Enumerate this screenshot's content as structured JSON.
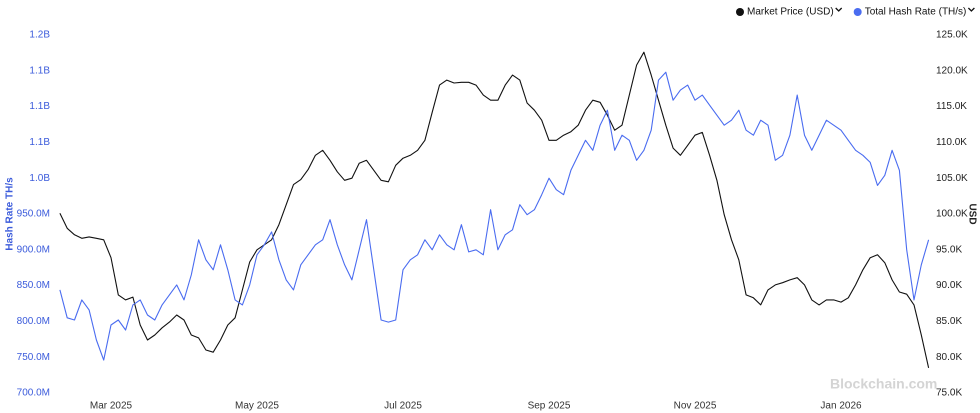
{
  "chart_data": {
    "type": "line",
    "y_label": "Hash Rate TH/s",
    "y2_label": "USD",
    "watermark": "Blockchain.com",
    "legend": "top-right",
    "categories": [
      null,
      null,
      null,
      null,
      null,
      null,
      null,
      "Mar 2025",
      null,
      null,
      null,
      null,
      null,
      null,
      null,
      null,
      null,
      null,
      null,
      null,
      null,
      null,
      null,
      null,
      null,
      null,
      null,
      "May 2025",
      null,
      null,
      null,
      null,
      null,
      null,
      null,
      null,
      null,
      null,
      null,
      null,
      null,
      null,
      null,
      null,
      null,
      null,
      null,
      "Jul 2025",
      null,
      null,
      null,
      null,
      null,
      null,
      null,
      null,
      null,
      null,
      null,
      null,
      null,
      null,
      null,
      null,
      null,
      null,
      null,
      "Sep 2025",
      null,
      null,
      null,
      null,
      null,
      null,
      null,
      null,
      null,
      null,
      null,
      null,
      null,
      null,
      null,
      null,
      null,
      null,
      null,
      "Nov 2025",
      null,
      null,
      null,
      null,
      null,
      null,
      null,
      null,
      null,
      null,
      null,
      null,
      null,
      null,
      null,
      null,
      null,
      null,
      null,
      "Jan 2026",
      null,
      null,
      null,
      null,
      null,
      null,
      null,
      null,
      null,
      null,
      null,
      null
    ],
    "ylim": [
      700000000,
      1200000000
    ],
    "yticks": [
      {
        "value": 700000000,
        "label": "700.0M"
      },
      {
        "value": 750000000,
        "label": "750.0M"
      },
      {
        "value": 800000000,
        "label": "800.0M"
      },
      {
        "value": 850000000,
        "label": "850.0M"
      },
      {
        "value": 900000000,
        "label": "900.0M"
      },
      {
        "value": 950000000,
        "label": "950.0M"
      },
      {
        "value": 1000000000,
        "label": "1.0B"
      },
      {
        "value": 1050000000,
        "label": "1.1B"
      },
      {
        "value": 1100000000,
        "label": "1.1B"
      },
      {
        "value": 1150000000,
        "label": "1.1B"
      },
      {
        "value": 1200000000,
        "label": "1.2B"
      }
    ],
    "y2lim": [
      75000,
      125000
    ],
    "y2ticks": [
      {
        "value": 75000,
        "label": "75.0K"
      },
      {
        "value": 80000,
        "label": "80.0K"
      },
      {
        "value": 85000,
        "label": "85.0K"
      },
      {
        "value": 90000,
        "label": "90.0K"
      },
      {
        "value": 95000,
        "label": "95.0K"
      },
      {
        "value": 100000,
        "label": "100.0K"
      },
      {
        "value": 105000,
        "label": "105.0K"
      },
      {
        "value": 110000,
        "label": "110.0K"
      },
      {
        "value": 115000,
        "label": "115.0K"
      },
      {
        "value": 120000,
        "label": "120.0K"
      },
      {
        "value": 125000,
        "label": "125.0K"
      }
    ],
    "series": [
      {
        "name": "Market Price (USD)",
        "color": "#111111",
        "axis": "y2",
        "values": [
          100100,
          98000,
          97100,
          96600,
          96800,
          96600,
          96400,
          93900,
          88700,
          88000,
          88400,
          84500,
          82400,
          83100,
          84100,
          84900,
          85900,
          85200,
          83100,
          82700,
          81000,
          80700,
          82400,
          84500,
          85500,
          89400,
          93300,
          95000,
          95700,
          96400,
          98500,
          101300,
          104100,
          104800,
          106200,
          108200,
          108900,
          107500,
          105900,
          104700,
          105000,
          107100,
          107500,
          106100,
          104700,
          104500,
          106800,
          107800,
          108200,
          108900,
          110300,
          114200,
          118000,
          118700,
          118300,
          118400,
          118400,
          118000,
          116600,
          115900,
          115900,
          118000,
          119400,
          118700,
          115500,
          114500,
          113100,
          110300,
          110300,
          111000,
          111500,
          112400,
          114500,
          115900,
          115600,
          113800,
          111700,
          112400,
          116600,
          120800,
          122600,
          119400,
          115900,
          112400,
          109200,
          108200,
          109600,
          111000,
          111400,
          108200,
          104700,
          99900,
          96400,
          93600,
          88700,
          88300,
          87300,
          89400,
          90100,
          90400,
          90800,
          91100,
          90100,
          88000,
          87300,
          88000,
          88000,
          87700,
          88300,
          90100,
          92200,
          93900,
          94300,
          93200,
          90800,
          89100,
          88800,
          87300,
          83100,
          78500
        ]
      },
      {
        "name": "Total Hash Rate (TH/s)",
        "color": "#4a6cf0",
        "values": [
          844000000,
          805000000,
          802000000,
          830000000,
          816000000,
          774000000,
          746000000,
          795000000,
          802000000,
          788000000,
          823000000,
          830000000,
          809000000,
          802000000,
          823000000,
          837000000,
          851000000,
          830000000,
          865000000,
          914000000,
          886000000,
          872000000,
          907000000,
          872000000,
          830000000,
          823000000,
          851000000,
          893000000,
          907000000,
          925000000,
          886000000,
          858000000,
          844000000,
          879000000,
          893000000,
          907000000,
          914000000,
          942000000,
          907000000,
          879000000,
          858000000,
          900000000,
          942000000,
          872000000,
          802000000,
          799000000,
          802000000,
          872000000,
          886000000,
          893000000,
          914000000,
          900000000,
          921000000,
          907000000,
          900000000,
          935000000,
          897000000,
          900000000,
          893000000,
          956000000,
          900000000,
          921000000,
          928000000,
          963000000,
          949000000,
          956000000,
          977000000,
          1000000000,
          984000000,
          977000000,
          1011000000,
          1032000000,
          1053000000,
          1039000000,
          1074000000,
          1095000000,
          1039000000,
          1060000000,
          1053000000,
          1025000000,
          1039000000,
          1067000000,
          1137000000,
          1148000000,
          1109000000,
          1123000000,
          1130000000,
          1109000000,
          1116000000,
          1102000000,
          1088000000,
          1074000000,
          1081000000,
          1095000000,
          1067000000,
          1060000000,
          1081000000,
          1074000000,
          1025000000,
          1032000000,
          1060000000,
          1116000000,
          1060000000,
          1039000000,
          1060000000,
          1081000000,
          1074000000,
          1067000000,
          1053000000,
          1039000000,
          1032000000,
          1022000000,
          990000000,
          1004000000,
          1039000000,
          1011000000,
          900000000,
          830000000,
          879000000,
          914000000
        ]
      }
    ]
  }
}
